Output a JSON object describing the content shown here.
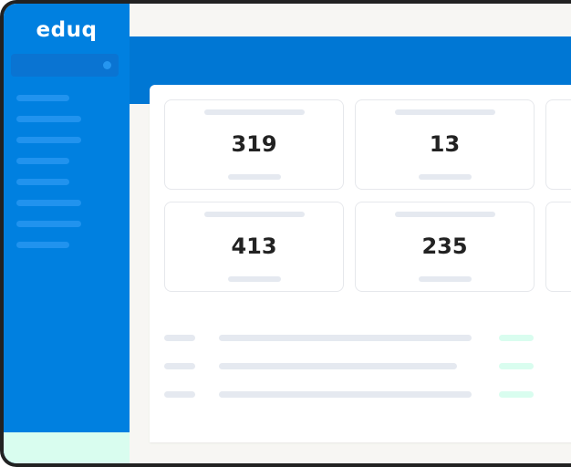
{
  "sidebar": {
    "logo": "eduq",
    "nav_item_count": 8
  },
  "stats": [
    {
      "value": "319"
    },
    {
      "value": "13"
    },
    {
      "value": ""
    },
    {
      "value": "413"
    },
    {
      "value": "235"
    },
    {
      "value": ""
    }
  ],
  "colors": {
    "primary": "#0080e0",
    "header_band": "#0077d4",
    "accent_mint": "#d9fdef",
    "placeholder": "#e5e9f0"
  }
}
